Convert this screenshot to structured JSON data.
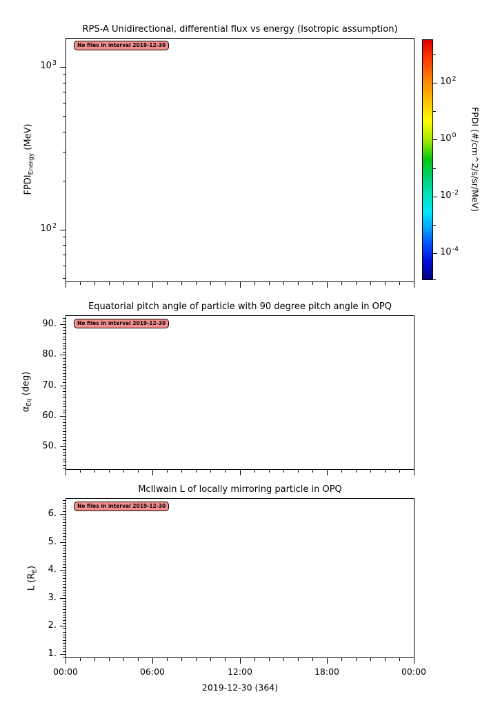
{
  "figure": {
    "background": "#ffffff",
    "annotation": {
      "text": "No files in interval 2019-12-30",
      "fill_color": "#f58f8f",
      "border_color": "#000000"
    }
  },
  "chart_data": [
    {
      "type": "line",
      "title": "RPS-A Unidirectional, differential flux vs energy (Isotropic assumption)",
      "ylabel": "FPDI_Energy (MeV)",
      "ylabel_parts": {
        "main": "FPDI",
        "sub": "Energy",
        "rest": " (MeV)"
      },
      "yscale": "log",
      "ylim": [
        48,
        1510
      ],
      "yticks": [
        {
          "value": 1000,
          "base": "10",
          "exp": "3"
        },
        {
          "value": 100,
          "base": "10",
          "exp": "2"
        }
      ],
      "xlim_hours": [
        0,
        24
      ],
      "grid": false,
      "series": [],
      "annotation": "No files in interval 2019-12-30",
      "colorbar": {
        "label": "FPDI (#/cm^2/s/sr/MeV)",
        "scale": "log",
        "tick_labels": [
          {
            "base": "10",
            "exp": "2",
            "value": 100
          },
          {
            "base": "10",
            "exp": "0",
            "value": 1
          },
          {
            "base": "10",
            "exp": "-2",
            "value": 0.01
          },
          {
            "base": "10",
            "exp": "-4",
            "value": 0.0001
          }
        ],
        "colormap": "rainbow",
        "gradient_stops": [
          {
            "pos": 0,
            "color": "#dc0000"
          },
          {
            "pos": 8,
            "color": "#ff3c00"
          },
          {
            "pos": 18,
            "color": "#ff8c00"
          },
          {
            "pos": 28,
            "color": "#ffd200"
          },
          {
            "pos": 34,
            "color": "#feff00"
          },
          {
            "pos": 42,
            "color": "#a0e800"
          },
          {
            "pos": 50,
            "color": "#00c814"
          },
          {
            "pos": 58,
            "color": "#00d278"
          },
          {
            "pos": 66,
            "color": "#00e6c8"
          },
          {
            "pos": 72,
            "color": "#00e6ff"
          },
          {
            "pos": 78,
            "color": "#00aaff"
          },
          {
            "pos": 85,
            "color": "#0055ff"
          },
          {
            "pos": 92,
            "color": "#0011dd"
          },
          {
            "pos": 100,
            "color": "#000082"
          }
        ]
      }
    },
    {
      "type": "line",
      "title": "Equatorial pitch angle of particle with 90 degree pitch angle in OPQ",
      "ylabel": "α_Eq (deg)",
      "ylabel_parts": {
        "main": "α",
        "sub": "Eq",
        "rest": " (deg)"
      },
      "yscale": "linear",
      "ylim": [
        42.5,
        93
      ],
      "yticks": [
        {
          "value": 90,
          "label": "90."
        },
        {
          "value": 80,
          "label": "80."
        },
        {
          "value": 70,
          "label": "70."
        },
        {
          "value": 60,
          "label": "60."
        },
        {
          "value": 50,
          "label": "50."
        }
      ],
      "xlim_hours": [
        0,
        24
      ],
      "grid": false,
      "series": [],
      "annotation": "No files in interval 2019-12-30"
    },
    {
      "type": "line",
      "title": "McIlwain L of locally mirroring particle in OPQ",
      "ylabel": "L (R_E)",
      "ylabel_parts": {
        "main": "L (R",
        "sub": "E",
        "rest": ")"
      },
      "yscale": "linear",
      "ylim": [
        0.88,
        6.57
      ],
      "yticks": [
        {
          "value": 6,
          "label": "6."
        },
        {
          "value": 5,
          "label": "5."
        },
        {
          "value": 4,
          "label": "4."
        },
        {
          "value": 3,
          "label": "3."
        },
        {
          "value": 2,
          "label": "2."
        },
        {
          "value": 1,
          "label": "1."
        }
      ],
      "xlim_hours": [
        0,
        24
      ],
      "xlabel": "2019-12-30 (364)",
      "xtick_labels": [
        "00:00",
        "06:00",
        "12:00",
        "18:00",
        "00:00"
      ],
      "xtick_hours": [
        0,
        6,
        12,
        18,
        24
      ],
      "grid": false,
      "series": [],
      "annotation": "No files in interval 2019-12-30"
    }
  ]
}
